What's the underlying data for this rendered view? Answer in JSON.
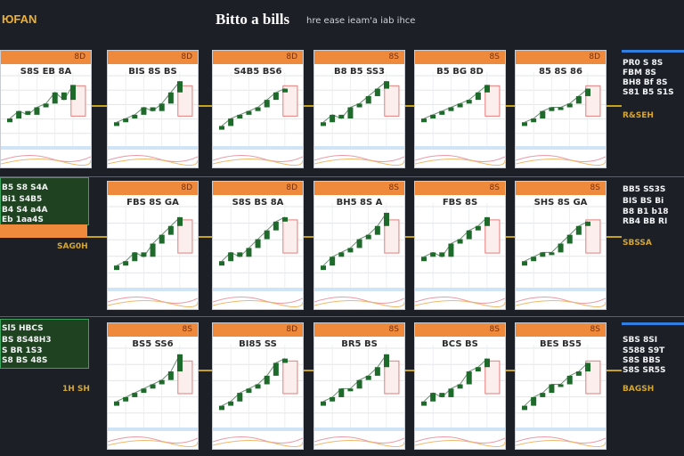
{
  "header": {
    "left_label": "ЮFAN",
    "title": "Bitto a bills",
    "subtitle": "hre ease ieam'a iab ihce"
  },
  "colors": {
    "background": "#1c1f26",
    "panel_header": "#ef8a3c",
    "candle": "#1d6a2a",
    "accent_gold": "#c7a21a",
    "accent_green": "#23a85a"
  },
  "side_left": {
    "row2": {
      "lines": [
        "B5 S8 S4A",
        "Bi1 S4B5",
        "B4 S4 a4A",
        "Eb 1aa4S"
      ],
      "footer": "SAG0H"
    },
    "row3": {
      "lines": [
        "Sl5 HBCS",
        "BS 8S48H3",
        "S BR 1S3",
        "S8 BS 48S"
      ],
      "footer": "1H SH"
    }
  },
  "side_right": {
    "row1": {
      "lines": [
        "PR0 S 8S",
        "FBM 8S",
        "BH8 Bf 8S",
        "S81 B5 S1S"
      ],
      "footer": "R&SEH"
    },
    "row2": {
      "lines": [
        "BB5 SS3S",
        "BIS BS Bi",
        "B8 B1 b18",
        "RB4 BB RI"
      ],
      "footer": "SBSSA"
    },
    "row3": {
      "lines": [
        "SBS 8SI",
        "S588 S9T",
        "S8S BBS",
        "S8S SR5S"
      ],
      "footer": "BAGSH"
    }
  },
  "chart_data": [
    {
      "type": "line",
      "title": "S8S EB 8A",
      "header": "8D",
      "values": [
        5,
        7,
        6,
        8,
        9,
        12,
        10,
        14
      ]
    },
    {
      "type": "line",
      "title": "BIS 8S BS",
      "header": "8D",
      "values": [
        4,
        5,
        6,
        8,
        7,
        9,
        12,
        15
      ]
    },
    {
      "type": "line",
      "title": "S4B5 BS6",
      "header": "8D",
      "values": [
        3,
        5,
        6,
        7,
        8,
        10,
        12,
        13
      ]
    },
    {
      "type": "line",
      "title": "B8 B5 SS3",
      "header": "8S",
      "values": [
        4,
        6,
        5,
        8,
        9,
        11,
        13,
        15
      ]
    },
    {
      "type": "line",
      "title": "B5 BG 8D",
      "header": "8S",
      "values": [
        5,
        6,
        7,
        8,
        9,
        10,
        12,
        14
      ]
    },
    {
      "type": "line",
      "title": "85 8S 86",
      "header": "8D",
      "values": [
        4,
        5,
        7,
        8,
        8,
        9,
        11,
        13
      ]
    },
    {
      "type": "line",
      "title": "FBS 8S GA",
      "header": "8D",
      "values": [
        3,
        4,
        6,
        5,
        8,
        10,
        12,
        14
      ]
    },
    {
      "type": "line",
      "title": "S8S BS 8A",
      "header": "8D",
      "values": [
        4,
        6,
        5,
        7,
        9,
        11,
        13,
        14
      ]
    },
    {
      "type": "line",
      "title": "BH5 8S A",
      "header": "8S",
      "values": [
        3,
        5,
        6,
        7,
        9,
        10,
        12,
        15
      ]
    },
    {
      "type": "line",
      "title": "FBS 8S",
      "header": "8S",
      "values": [
        5,
        6,
        5,
        8,
        9,
        11,
        12,
        14
      ]
    },
    {
      "type": "line",
      "title": "SHS 8S GA",
      "header": "8S",
      "values": [
        4,
        5,
        6,
        6,
        8,
        10,
        12,
        13
      ]
    },
    {
      "type": "line",
      "title": "BS5 SS6",
      "header": "8S",
      "values": [
        4,
        5,
        6,
        7,
        8,
        9,
        11,
        15
      ]
    },
    {
      "type": "line",
      "title": "BI85 SS",
      "header": "8D",
      "values": [
        3,
        4,
        6,
        7,
        8,
        10,
        13,
        14
      ]
    },
    {
      "type": "line",
      "title": "BR5 BS",
      "header": "8S",
      "values": [
        4,
        5,
        7,
        7,
        9,
        10,
        12,
        15
      ]
    },
    {
      "type": "line",
      "title": "BCS BS",
      "header": "8S",
      "values": [
        4,
        6,
        5,
        7,
        8,
        11,
        12,
        14
      ]
    },
    {
      "type": "line",
      "title": "BES BS5",
      "header": "8S",
      "values": [
        3,
        5,
        6,
        8,
        8,
        10,
        11,
        13
      ]
    }
  ]
}
